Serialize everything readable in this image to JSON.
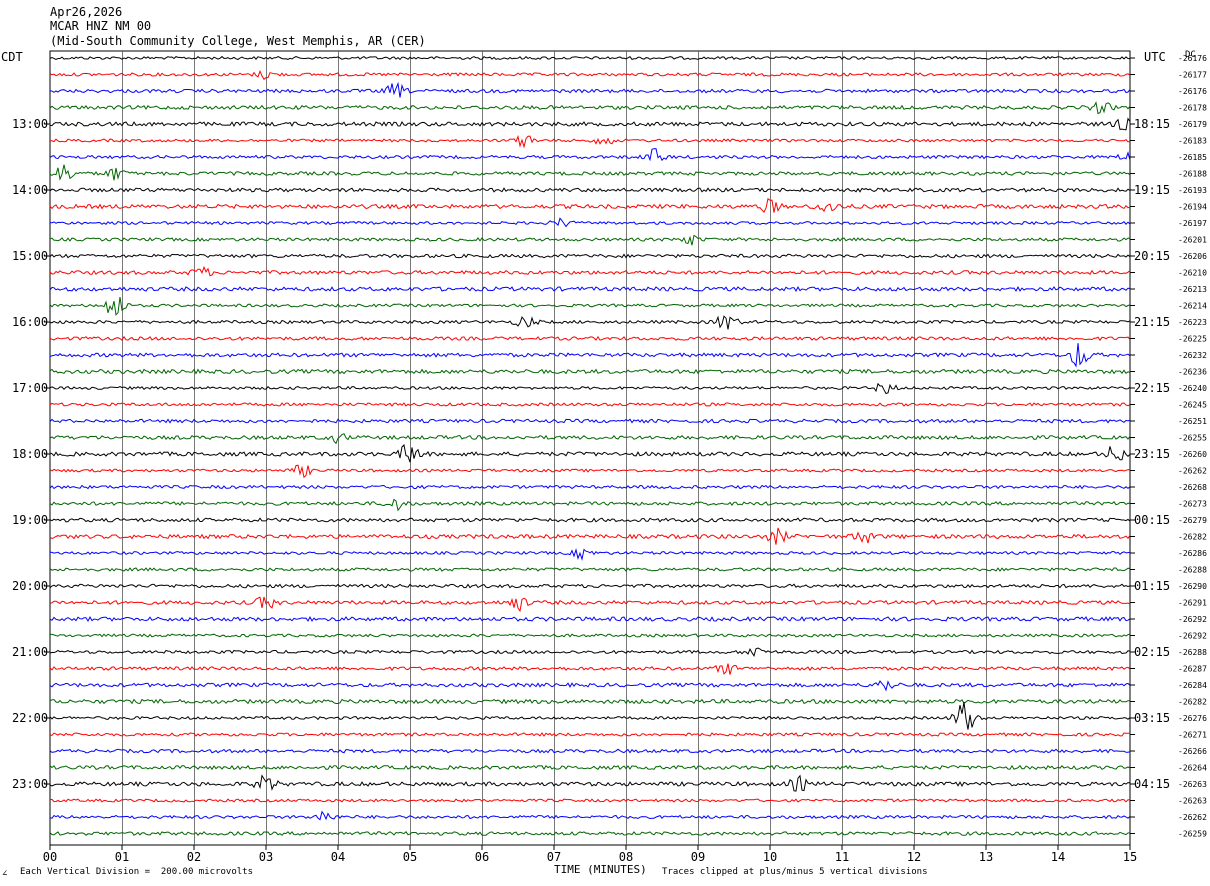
{
  "header": {
    "date": "Apr26,2026",
    "station": "MCAR HNZ NM 00",
    "location": "(Mid-South Community College, West Memphis, AR (CER)"
  },
  "left_zone": "CDT",
  "right_zone": "UTC",
  "dc_label": "DC",
  "footer": {
    "corner_mark": "∠",
    "scale_note": "Each Vertical Division =  200.00 microvolts",
    "clip_note": "Traces clipped at plus/minus 5 vertical divisions"
  },
  "chart_data": {
    "type": "line",
    "xlabel": "TIME (MINUTES)",
    "xlim": [
      0,
      15
    ],
    "x_ticks": [
      "00",
      "01",
      "02",
      "03",
      "04",
      "05",
      "06",
      "07",
      "08",
      "09",
      "10",
      "11",
      "12",
      "13",
      "14",
      "15"
    ],
    "grid": true,
    "trace_colors": [
      "#000000",
      "#ff0000",
      "#0000ff",
      "#006400"
    ],
    "left_hour_labels": [
      "13:00",
      "14:00",
      "15:00",
      "16:00",
      "17:00",
      "18:00",
      "19:00",
      "20:00",
      "21:00",
      "22:00",
      "23:00"
    ],
    "right_hour_labels": [
      "18:15",
      "19:15",
      "20:15",
      "21:15",
      "22:15",
      "23:15",
      "00:15",
      "01:15",
      "02:15",
      "03:15",
      "04:15"
    ],
    "dc_offsets": [
      "-26176",
      "-26177",
      "-26176",
      "-26178",
      "-26179",
      "-26183",
      "-26185",
      "-26188",
      "-26193",
      "-26194",
      "-26197",
      "-26201",
      "-26206",
      "-26210",
      "-26213",
      "-26214",
      "-26223",
      "-26225",
      "-26232",
      "-26236",
      "-26240",
      "-26245",
      "-26251",
      "-26255",
      "-26260",
      "-26262",
      "-26268",
      "-26273",
      "-26279",
      "-26282",
      "-26286",
      "-26288",
      "-26290",
      "-26291",
      "-26292",
      "-26292",
      "-26288",
      "-26287",
      "-26284",
      "-26282",
      "-26276",
      "-26271",
      "-26266",
      "-26264",
      "-26263",
      "-26263",
      "-26262",
      "-26259"
    ],
    "trace_count": 48,
    "events": [
      {
        "trace": 1,
        "minute": 3.0,
        "amp": 0.7
      },
      {
        "trace": 2,
        "minute": 4.8,
        "amp": 1.2
      },
      {
        "trace": 3,
        "minute": 14.6,
        "amp": 0.9
      },
      {
        "trace": 4,
        "minute": 14.9,
        "amp": 0.8
      },
      {
        "trace": 5,
        "minute": 6.6,
        "amp": 1.0
      },
      {
        "trace": 5,
        "minute": 7.7,
        "amp": 0.8
      },
      {
        "trace": 6,
        "minute": 8.4,
        "amp": 1.3
      },
      {
        "trace": 6,
        "minute": 15.0,
        "amp": 0.9
      },
      {
        "trace": 7,
        "minute": 0.2,
        "amp": 1.6
      },
      {
        "trace": 7,
        "minute": 0.9,
        "amp": 1.0
      },
      {
        "trace": 9,
        "minute": 10.0,
        "amp": 1.1
      },
      {
        "trace": 9,
        "minute": 10.8,
        "amp": 1.0
      },
      {
        "trace": 10,
        "minute": 7.1,
        "amp": 0.7
      },
      {
        "trace": 11,
        "minute": 8.9,
        "amp": 0.8
      },
      {
        "trace": 13,
        "minute": 2.1,
        "amp": 0.8
      },
      {
        "trace": 15,
        "minute": 0.9,
        "amp": 2.4
      },
      {
        "trace": 16,
        "minute": 6.6,
        "amp": 1.0
      },
      {
        "trace": 16,
        "minute": 9.4,
        "amp": 1.6
      },
      {
        "trace": 18,
        "minute": 14.3,
        "amp": 2.2
      },
      {
        "trace": 20,
        "minute": 11.6,
        "amp": 1.0
      },
      {
        "trace": 23,
        "minute": 4.0,
        "amp": 0.7
      },
      {
        "trace": 24,
        "minute": 5.0,
        "amp": 2.0
      },
      {
        "trace": 24,
        "minute": 14.8,
        "amp": 1.5
      },
      {
        "trace": 25,
        "minute": 3.5,
        "amp": 1.0
      },
      {
        "trace": 27,
        "minute": 4.8,
        "amp": 1.1
      },
      {
        "trace": 29,
        "minute": 10.1,
        "amp": 1.2
      },
      {
        "trace": 29,
        "minute": 11.3,
        "amp": 1.1
      },
      {
        "trace": 30,
        "minute": 7.4,
        "amp": 0.9
      },
      {
        "trace": 33,
        "minute": 3.0,
        "amp": 1.1
      },
      {
        "trace": 33,
        "minute": 6.5,
        "amp": 1.2
      },
      {
        "trace": 36,
        "minute": 9.8,
        "amp": 0.9
      },
      {
        "trace": 37,
        "minute": 9.4,
        "amp": 0.9
      },
      {
        "trace": 38,
        "minute": 11.6,
        "amp": 0.9
      },
      {
        "trace": 40,
        "minute": 12.7,
        "amp": 3.4
      },
      {
        "trace": 44,
        "minute": 3.0,
        "amp": 1.4
      },
      {
        "trace": 44,
        "minute": 10.4,
        "amp": 1.1
      },
      {
        "trace": 46,
        "minute": 3.8,
        "amp": 1.0
      }
    ]
  }
}
